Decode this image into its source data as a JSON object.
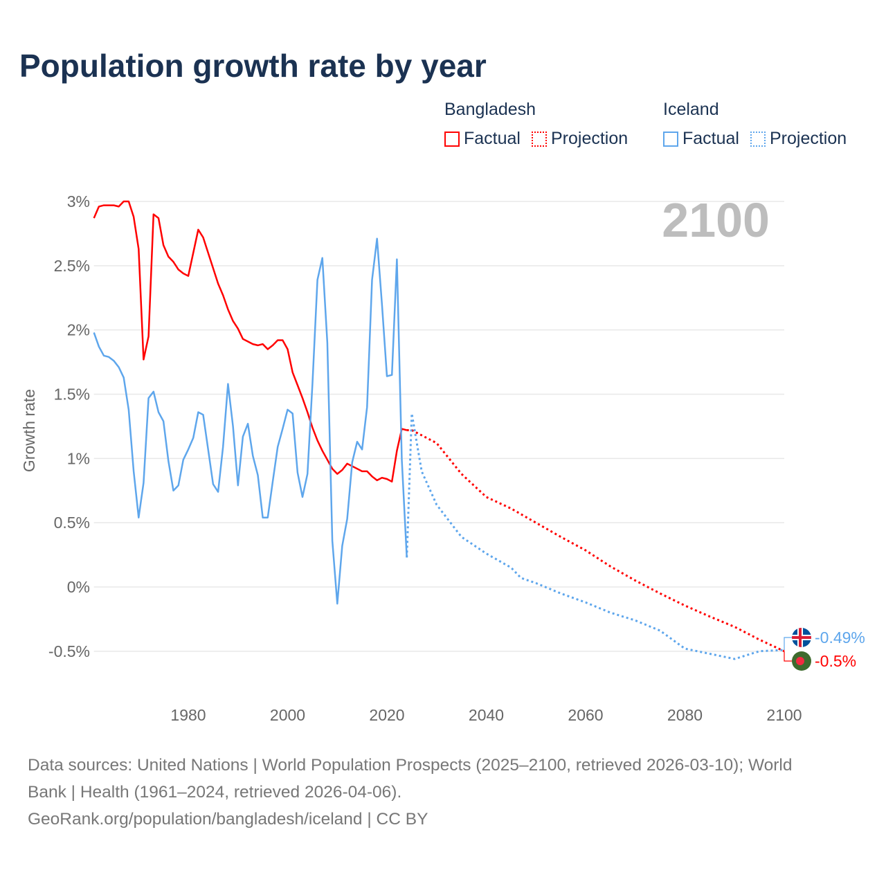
{
  "chart_data": {
    "type": "line",
    "title": "Population growth rate by year",
    "ylabel": "Growth rate",
    "xlabel": "",
    "xlim": [
      1961,
      2100
    ],
    "ylim": [
      -0.8,
      3.0
    ],
    "x_ticks": [
      1980,
      2000,
      2020,
      2040,
      2060,
      2080,
      2100
    ],
    "y_ticks": [
      -0.5,
      0,
      0.5,
      1,
      1.5,
      2,
      2.5,
      3
    ],
    "y_tick_labels": [
      "-0.5%",
      "0%",
      "0.5%",
      "1%",
      "1.5%",
      "2%",
      "2.5%",
      "3%"
    ],
    "x_tick_labels": [
      "1980",
      "2000",
      "2020",
      "2040",
      "2060",
      "2080",
      "2100"
    ],
    "grid": true,
    "current_year_label": "2100",
    "legend": {
      "placement": "top-right",
      "groups": [
        {
          "name": "Bangladesh",
          "factual": "Factual",
          "projection": "Projection"
        },
        {
          "name": "Iceland",
          "factual": "Factual",
          "projection": "Projection"
        }
      ]
    },
    "series": [
      {
        "name": "Bangladesh",
        "kind": "factual",
        "color": "#ff0000",
        "x_start": 1961,
        "values": [
          2.87,
          2.96,
          2.97,
          2.97,
          2.97,
          2.96,
          3.0,
          3.0,
          2.88,
          2.63,
          1.77,
          1.95,
          2.9,
          2.87,
          2.66,
          2.57,
          2.53,
          2.47,
          2.44,
          2.42,
          2.6,
          2.78,
          2.72,
          2.6,
          2.48,
          2.36,
          2.27,
          2.16,
          2.07,
          2.01,
          1.93,
          1.91,
          1.89,
          1.88,
          1.89,
          1.85,
          1.88,
          1.92,
          1.92,
          1.85,
          1.67,
          1.57,
          1.47,
          1.36,
          1.24,
          1.14,
          1.06,
          0.99,
          0.92,
          0.88,
          0.91,
          0.96,
          0.94,
          0.92,
          0.9,
          0.9,
          0.86,
          0.83,
          0.85,
          0.84,
          0.82,
          1.06,
          1.23,
          1.22
        ]
      },
      {
        "name": "Bangladesh",
        "kind": "projection",
        "color": "#ff0000",
        "x": [
          2024,
          2025,
          2030,
          2035,
          2040,
          2045,
          2050,
          2055,
          2060,
          2065,
          2070,
          2075,
          2080,
          2085,
          2090,
          2095,
          2100
        ],
        "values": [
          1.22,
          1.22,
          1.12,
          0.88,
          0.7,
          0.61,
          0.5,
          0.39,
          0.285,
          0.16,
          0.05,
          -0.05,
          -0.145,
          -0.23,
          -0.31,
          -0.41,
          -0.5
        ]
      },
      {
        "name": "Iceland",
        "kind": "factual",
        "color": "#5ea6ec",
        "x_start": 1961,
        "values": [
          1.98,
          1.87,
          1.8,
          1.79,
          1.76,
          1.71,
          1.63,
          1.38,
          0.9,
          0.54,
          0.81,
          1.47,
          1.52,
          1.36,
          1.29,
          0.98,
          0.75,
          0.79,
          0.99,
          1.07,
          1.16,
          1.36,
          1.34,
          1.07,
          0.8,
          0.74,
          1.09,
          1.58,
          1.25,
          0.79,
          1.17,
          1.27,
          1.02,
          0.87,
          0.54,
          0.54,
          0.82,
          1.09,
          1.23,
          1.38,
          1.35,
          0.89,
          0.7,
          0.88,
          1.58,
          2.39,
          2.56,
          1.9,
          0.36,
          -0.13,
          0.32,
          0.53,
          0.97,
          1.13,
          1.07,
          1.4,
          2.39,
          2.71,
          2.2,
          1.64,
          1.65,
          2.55,
          0.99,
          0.23
        ]
      },
      {
        "name": "Iceland",
        "kind": "projection",
        "color": "#5ea6ec",
        "x": [
          2024,
          2025,
          2027,
          2030,
          2035,
          2040,
          2045,
          2047,
          2050,
          2055,
          2060,
          2065,
          2070,
          2075,
          2080,
          2085,
          2090,
          2095,
          2100
        ],
        "values": [
          0.23,
          1.35,
          0.9,
          0.64,
          0.39,
          0.26,
          0.15,
          0.07,
          0.03,
          -0.05,
          -0.12,
          -0.2,
          -0.26,
          -0.34,
          -0.48,
          -0.52,
          -0.56,
          -0.5,
          -0.49
        ]
      }
    ],
    "end_labels": [
      {
        "country": "Iceland",
        "text": "-0.49%",
        "color": "#5ea6ec"
      },
      {
        "country": "Bangladesh",
        "text": "-0.5%",
        "color": "#ff0000"
      }
    ]
  },
  "footer": {
    "line1": "Data sources: United Nations | World Population Prospects (2025–2100, retrieved 2026-03-10); World",
    "line2": "Bank | Health (1961–2024, retrieved 2026-04-06).",
    "line3": "GeoRank.org/population/bangladesh/iceland | CC BY"
  }
}
